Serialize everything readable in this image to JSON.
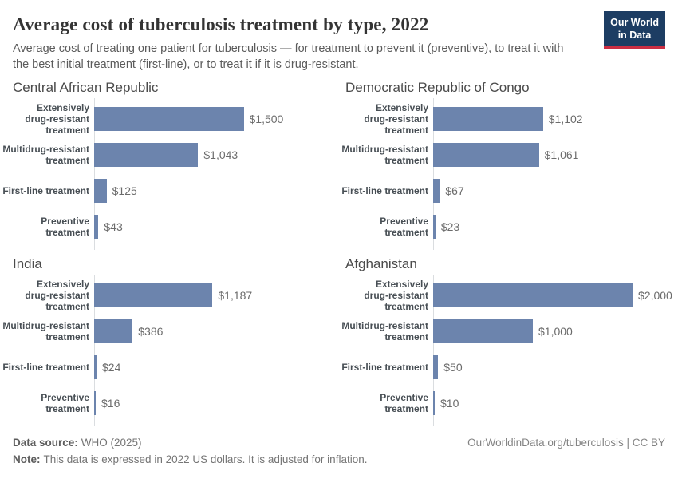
{
  "header": {
    "title": "Average cost of tuberculosis treatment by type, 2022",
    "subtitle": "Average cost of treating one patient for tuberculosis — for treatment to prevent it (preventive), to treat it with\nthe best initial treatment (first-line), or to treat it if it is drug-resistant.",
    "logo": {
      "line1": "Our World",
      "line2": "in Data"
    }
  },
  "chart_data": {
    "type": "bar",
    "orientation": "horizontal",
    "unit": "2022 US dollars",
    "x_max": 2000,
    "grid": false,
    "legend": "none",
    "categories": [
      "Extensively drug-resistant treatment",
      "Multidrug-resistant treatment",
      "First-line treatment",
      "Preventive treatment"
    ],
    "panels": [
      {
        "title": "Central African Republic",
        "rows": [
          {
            "label": "Extensively\ndrug-resistant\ntreatment",
            "value": 1500,
            "value_label": "$1,500"
          },
          {
            "label": "Multidrug-resistant\ntreatment",
            "value": 1043,
            "value_label": "$1,043"
          },
          {
            "label": "First-line treatment",
            "value": 125,
            "value_label": "$125"
          },
          {
            "label": "Preventive\ntreatment",
            "value": 43,
            "value_label": "$43"
          }
        ]
      },
      {
        "title": "Democratic Republic of Congo",
        "rows": [
          {
            "label": "Extensively\ndrug-resistant\ntreatment",
            "value": 1102,
            "value_label": "$1,102"
          },
          {
            "label": "Multidrug-resistant\ntreatment",
            "value": 1061,
            "value_label": "$1,061"
          },
          {
            "label": "First-line treatment",
            "value": 67,
            "value_label": "$67"
          },
          {
            "label": "Preventive\ntreatment",
            "value": 23,
            "value_label": "$23"
          }
        ]
      },
      {
        "title": "India",
        "rows": [
          {
            "label": "Extensively\ndrug-resistant\ntreatment",
            "value": 1187,
            "value_label": "$1,187"
          },
          {
            "label": "Multidrug-resistant\ntreatment",
            "value": 386,
            "value_label": "$386"
          },
          {
            "label": "First-line treatment",
            "value": 24,
            "value_label": "$24"
          },
          {
            "label": "Preventive\ntreatment",
            "value": 16,
            "value_label": "$16"
          }
        ]
      },
      {
        "title": "Afghanistan",
        "rows": [
          {
            "label": "Extensively\ndrug-resistant\ntreatment",
            "value": 2000,
            "value_label": "$2,000"
          },
          {
            "label": "Multidrug-resistant\ntreatment",
            "value": 1000,
            "value_label": "$1,000"
          },
          {
            "label": "First-line treatment",
            "value": 50,
            "value_label": "$50"
          },
          {
            "label": "Preventive\ntreatment",
            "value": 10,
            "value_label": "$10"
          }
        ]
      }
    ]
  },
  "footer": {
    "source_label": "Data source:",
    "source_value": "WHO (2025)",
    "note_label": "Note:",
    "note_value": "This data is expressed in 2022 US dollars. It is adjusted for inflation.",
    "attribution": "OurWorldinData.org/tuberculosis | CC BY"
  },
  "colors": {
    "bar": "#6c84ad",
    "logo_background": "#1d3d63",
    "logo_accent": "#cb2e43",
    "axis_line": "#dadde0"
  }
}
